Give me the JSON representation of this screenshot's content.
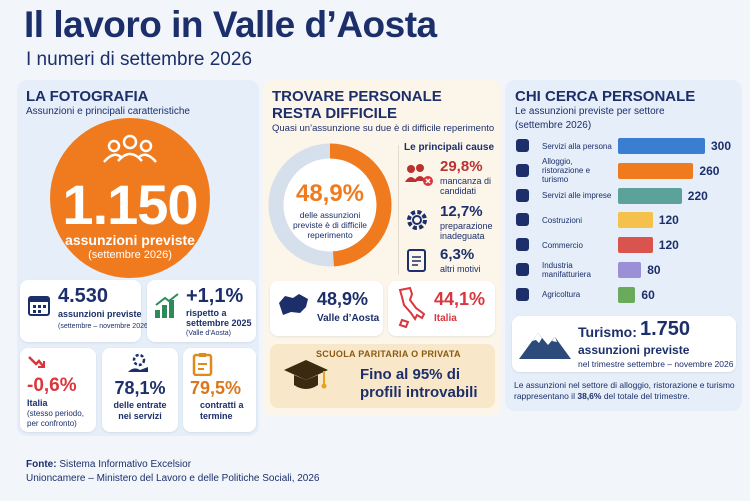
{
  "header": {
    "title": "Il lavoro in Valle d’Aosta",
    "subtitle": "I numeri di settembre 2026"
  },
  "fotografia": {
    "title": "LA FOTOGRAFIA",
    "subtitle": "Assunzioni e principali caratteristiche",
    "main_value": "1.150",
    "main_label": "assunzioni previste",
    "main_period": "(settembre 2026)",
    "stats": [
      {
        "value": "4.530",
        "label": "assunzioni previste",
        "note": "(settembre – novembre 2026)"
      },
      {
        "value": "+1,1%",
        "label": "rispetto a settembre 2025",
        "note": "(Valle d’Aosta)"
      },
      {
        "value": "-0,6%",
        "label": "Italia",
        "note": "(stesso periodo, per confronto)"
      },
      {
        "value": "78,1%",
        "label": "delle entrate nei servizi"
      },
      {
        "value": "79,5%",
        "label": "contratti a termine"
      }
    ]
  },
  "difficile": {
    "title": "TROVARE PERSONALE RESTA DIFFICILE",
    "subtitle": "Quasi un’assunzione su due è di difficile reperimento",
    "donut": {
      "value": 48.9,
      "label": "48,9%",
      "text": "delle assunzioni previste è di difficile reperimento"
    },
    "causes_title": "Le principali cause",
    "causes": [
      {
        "value": "29,8%",
        "label": "mancanza di candidati"
      },
      {
        "value": "12,7%",
        "label": "preparazione inadeguata"
      },
      {
        "value": "6,3%",
        "label": "altri motivi"
      }
    ],
    "compare": [
      {
        "value": "48,9%",
        "label": "Valle d’Aosta"
      },
      {
        "value": "44,1%",
        "label": "Italia"
      }
    ],
    "school": {
      "title": "SCUOLA PARITARIA O PRIVATA",
      "text": "Fino al 95% di profili introvabili"
    }
  },
  "settori": {
    "title": "CHI CERCA PERSONALE",
    "subtitle": "Le assunzioni previste per settore",
    "period": "(settembre 2026)",
    "turismo": {
      "title": "Turismo:",
      "value": "1.750",
      "label": "assunzioni previste",
      "period": "nel trimestre settembre – novembre 2026"
    },
    "note": {
      "before": "Le assunzioni nel settore di alloggio, ristorazione e turismo rappresentano il",
      "highlight": "38,6%",
      "after": "del totale del trimestre."
    }
  },
  "chart_data": {
    "type": "bar",
    "orientation": "horizontal",
    "categories": [
      "Servizi alla persona",
      "Alloggio, ristorazione e turismo",
      "Servizi alle imprese",
      "Costruzioni",
      "Commercio",
      "Industria manifatturiera",
      "Agricoltura"
    ],
    "values": [
      300,
      260,
      220,
      120,
      120,
      80,
      60
    ],
    "colors": [
      "#3b7dd0",
      "#f07b1f",
      "#5ba39a",
      "#f4c24c",
      "#d9534f",
      "#9b8fd6",
      "#6aaa5c"
    ]
  },
  "footer": {
    "label": "Fonte:",
    "source": "Sistema Informativo Excelsior",
    "line2": "Unioncamere – Ministero del Lavoro e delle Politiche Sociali, 2026"
  }
}
